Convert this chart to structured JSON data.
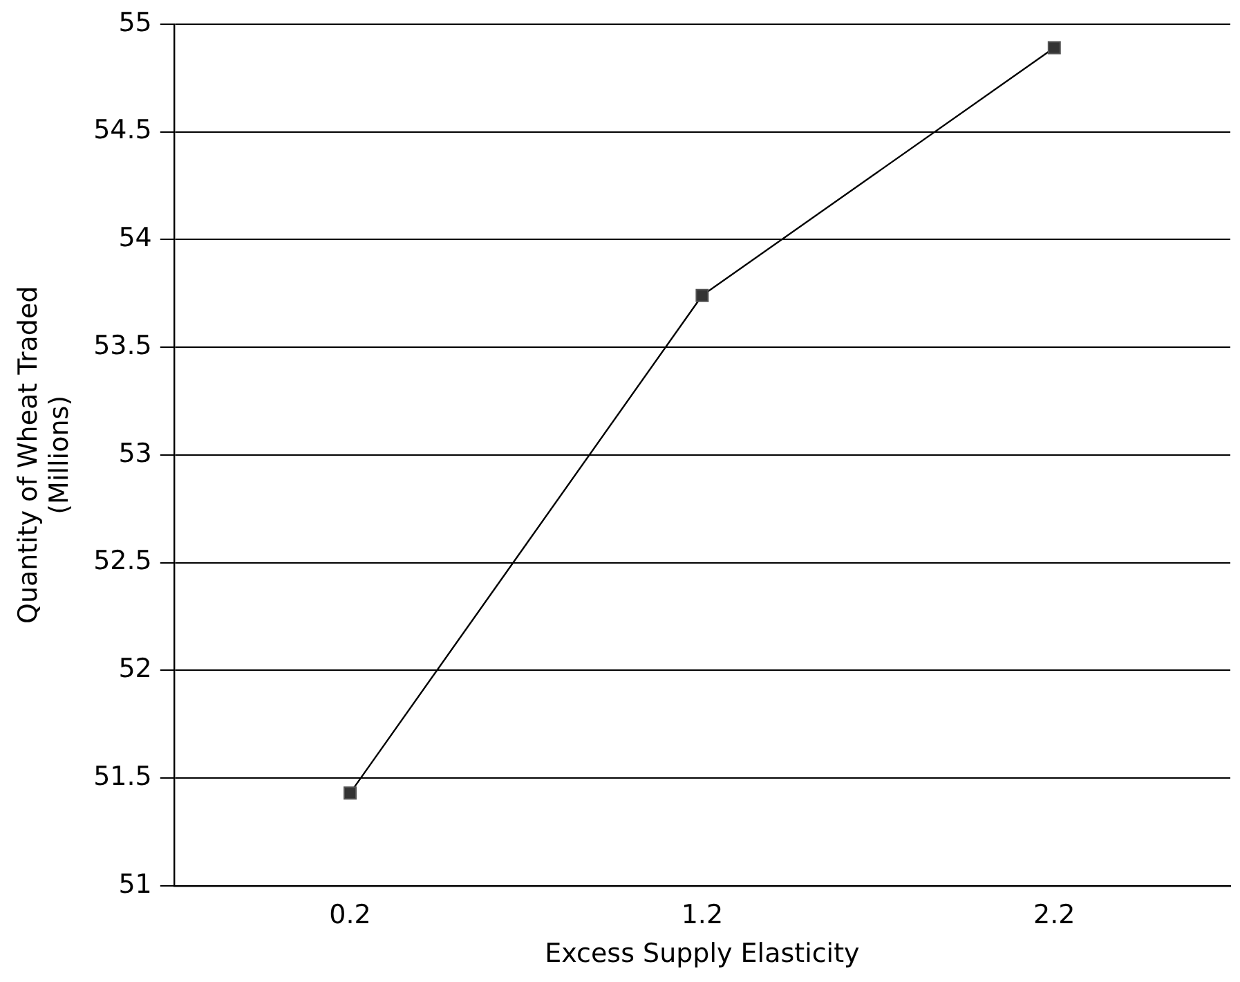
{
  "chart_data": {
    "type": "line",
    "xlabel": "Excess Supply Elasticity",
    "ylabel": "Quantity of Wheat Traded\n(Millions)",
    "categories": [
      "0.2",
      "1.2",
      "2.2"
    ],
    "series": [
      {
        "color": "#333333",
        "values": [
          51.43,
          53.74,
          54.89
        ]
      }
    ],
    "ylim": [
      51,
      55
    ],
    "yticks": [
      51,
      51.5,
      52,
      52.5,
      53,
      53.5,
      54,
      54.5,
      55
    ],
    "grid": "y",
    "legend": false,
    "marker": "square",
    "line_style": "solid"
  }
}
